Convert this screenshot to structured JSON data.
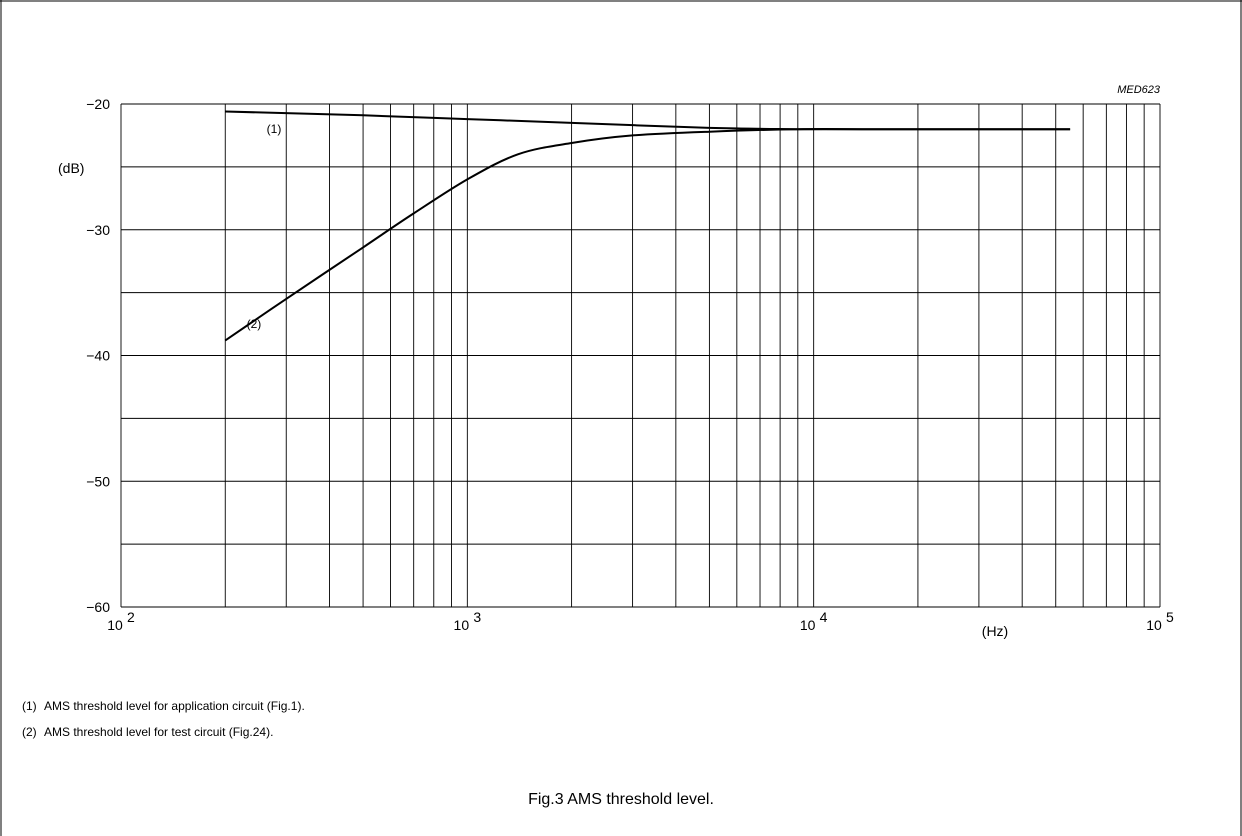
{
  "chart_data": {
    "type": "line",
    "code": "MED623",
    "x_scale": "log",
    "xlim": [
      100,
      100000
    ],
    "ylim": [
      -60,
      -20
    ],
    "grid": true,
    "x_ticks": [
      {
        "value": 100,
        "base": "10",
        "exp": "2"
      },
      {
        "value": 1000,
        "base": "10",
        "exp": "3"
      },
      {
        "value": 10000,
        "base": "10",
        "exp": "4"
      },
      {
        "value": 100000,
        "base": "10",
        "exp": "5"
      }
    ],
    "y_ticks": [
      {
        "value": -20,
        "label": "−20"
      },
      {
        "value": -30,
        "label": "−30"
      },
      {
        "value": -40,
        "label": "−40"
      },
      {
        "value": -50,
        "label": "−50"
      },
      {
        "value": -60,
        "label": "−60"
      }
    ],
    "xlabel": "(Hz)",
    "ylabel": "(dB)",
    "series": [
      {
        "name": "(1)",
        "x": [
          200,
          500,
          1000,
          2000,
          5000,
          9000,
          15000,
          30000,
          55000
        ],
        "y": [
          -20.6,
          -20.9,
          -21.2,
          -21.5,
          -21.9,
          -22.0,
          -22.0,
          -22.0,
          -22.0
        ]
      },
      {
        "name": "(2)",
        "x": [
          200,
          300,
          500,
          700,
          1000,
          1400,
          2000,
          3000,
          5000,
          9000,
          15000,
          30000,
          55000
        ],
        "y": [
          -38.8,
          -35.5,
          -31.4,
          -28.7,
          -26.0,
          -24.0,
          -23.1,
          -22.5,
          -22.2,
          -22.0,
          -22.0,
          -22.0,
          -22.0
        ]
      }
    ],
    "series_label_pos": [
      {
        "x": 240,
        "y": -22.3
      },
      {
        "x": 210,
        "y": -37.8
      }
    ],
    "curve_color": "#000000",
    "grid_color": "#000000"
  },
  "notes": [
    {
      "num": "(1)",
      "text": "AMS threshold level for application circuit (Fig.1)."
    },
    {
      "num": "(2)",
      "text": "AMS threshold level for test circuit (Fig.24)."
    }
  ],
  "caption": "Fig.3  AMS threshold level."
}
